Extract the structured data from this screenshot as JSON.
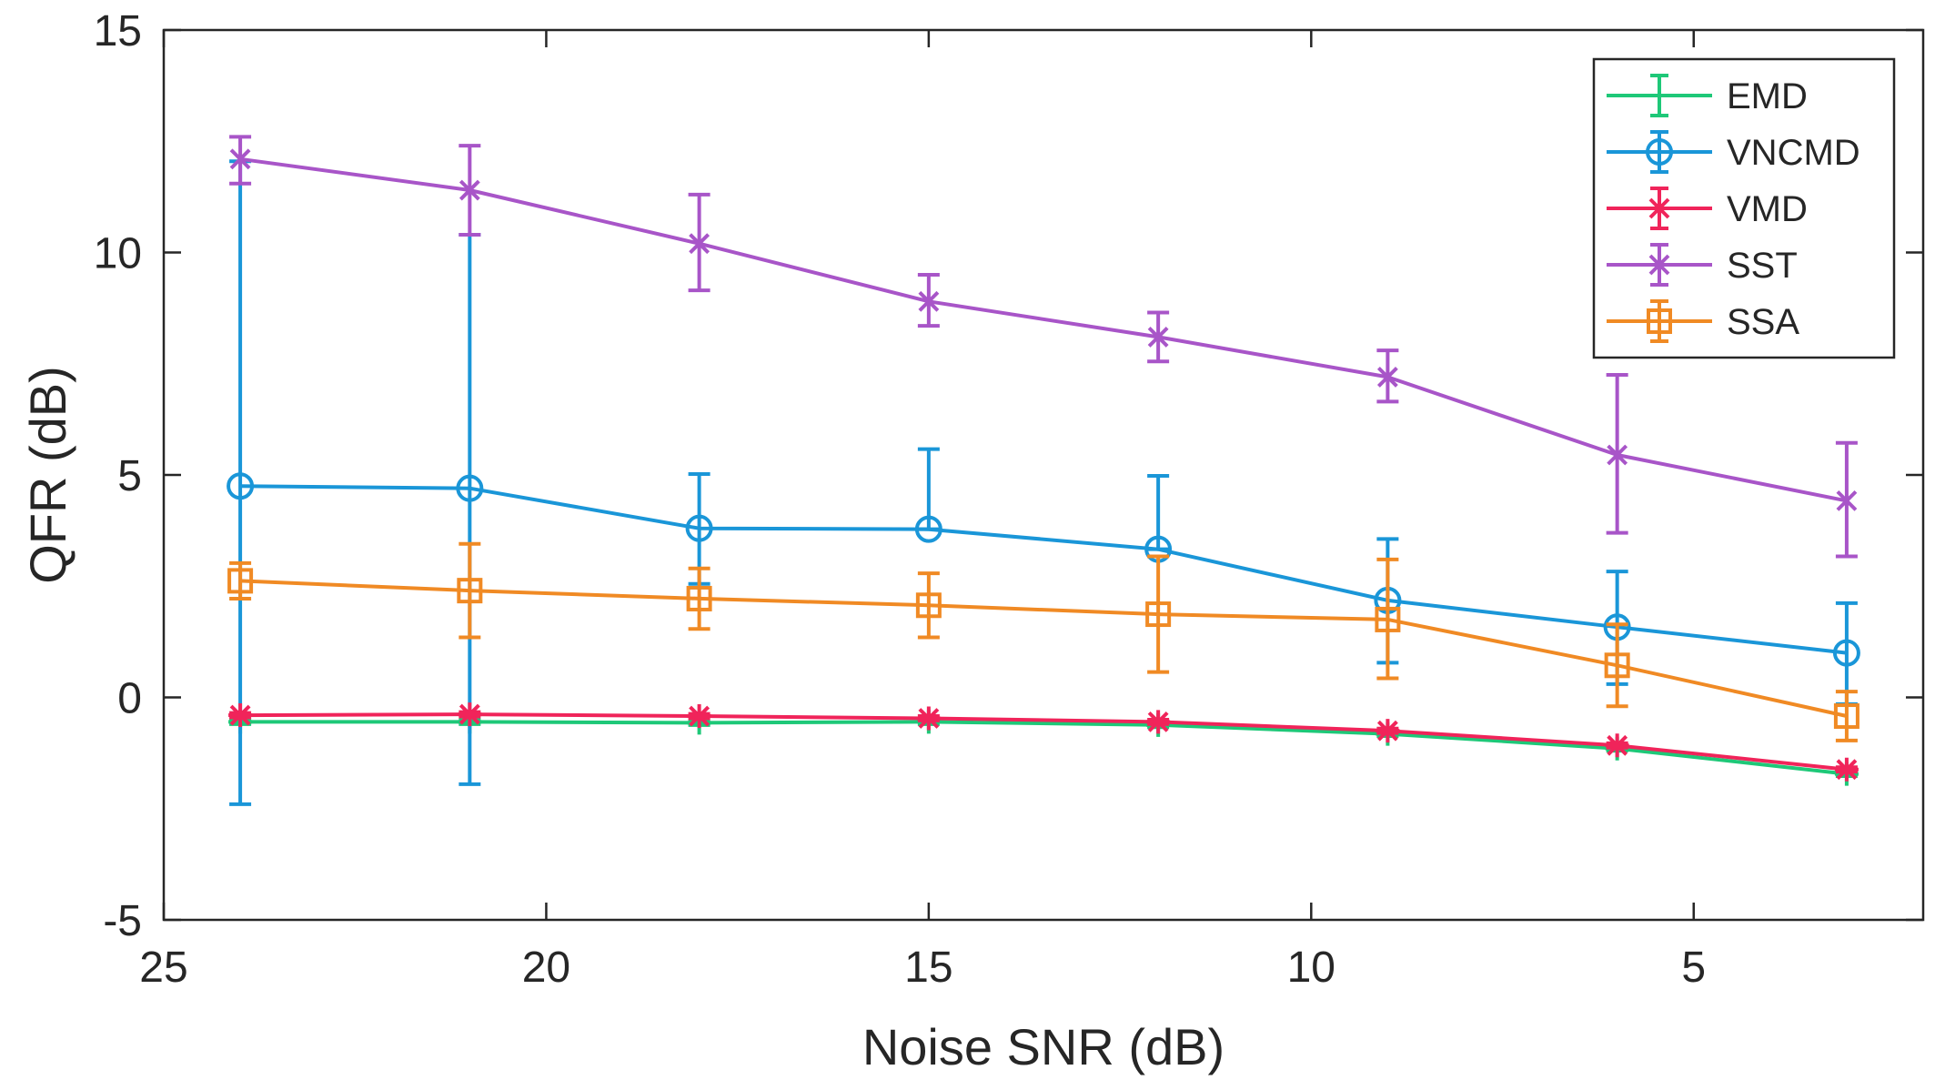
{
  "chart_data": {
    "type": "line",
    "title": "",
    "xlabel": "Noise SNR (dB)",
    "ylabel": "QFR (dB)",
    "xlim": [
      25,
      2
    ],
    "ylim": [
      -5,
      15
    ],
    "x_reversed": true,
    "grid": false,
    "legend_position": "top-right",
    "xticks": [
      25,
      20,
      15,
      10,
      5
    ],
    "xtick_labels": [
      "25",
      "20",
      "15",
      "10",
      "5"
    ],
    "yticks": [
      15,
      10,
      5,
      0,
      -5
    ],
    "ytick_labels": [
      "15",
      "10",
      "5",
      "0",
      "-5"
    ],
    "x": [
      24,
      21,
      18,
      15,
      12,
      9,
      6,
      3
    ],
    "series": [
      {
        "name": "EMD",
        "color": "#1ec878",
        "marker": "plus",
        "values": [
          -0.55,
          -0.55,
          -0.57,
          -0.55,
          -0.62,
          -0.82,
          -1.15,
          -1.72
        ],
        "err_low": [
          0.05,
          0.05,
          0.05,
          0.05,
          0.05,
          0.05,
          0.05,
          0.05
        ],
        "err_high": [
          0.05,
          0.05,
          0.05,
          0.05,
          0.05,
          0.05,
          0.05,
          0.05
        ]
      },
      {
        "name": "VNCMD",
        "color": "#1a96d8",
        "marker": "circle",
        "values": [
          4.75,
          4.7,
          3.8,
          3.78,
          3.33,
          2.18,
          1.58,
          1.0
        ],
        "err_low": [
          7.15,
          6.65,
          1.25,
          0.0,
          0.0,
          1.4,
          1.28,
          1.15
        ],
        "err_high": [
          7.3,
          5.7,
          1.22,
          1.8,
          1.65,
          1.38,
          1.25,
          1.12
        ]
      },
      {
        "name": "VMD",
        "color": "#f0245a",
        "marker": "star",
        "values": [
          -0.4,
          -0.38,
          -0.42,
          -0.47,
          -0.55,
          -0.75,
          -1.08,
          -1.62
        ],
        "err_low": [
          0.05,
          0.05,
          0.05,
          0.05,
          0.05,
          0.05,
          0.05,
          0.05
        ],
        "err_high": [
          0.05,
          0.05,
          0.05,
          0.05,
          0.05,
          0.05,
          0.05,
          0.05
        ]
      },
      {
        "name": "SST",
        "color": "#a855c8",
        "marker": "cross",
        "values": [
          12.1,
          11.4,
          10.2,
          8.9,
          8.1,
          7.2,
          5.45,
          4.42
        ],
        "err_low": [
          0.55,
          1.0,
          1.05,
          0.55,
          0.55,
          0.55,
          1.75,
          1.25
        ],
        "err_high": [
          0.5,
          1.0,
          1.1,
          0.6,
          0.55,
          0.6,
          1.8,
          1.3
        ]
      },
      {
        "name": "SSA",
        "color": "#f08a24",
        "marker": "square",
        "values": [
          2.62,
          2.4,
          2.22,
          2.07,
          1.87,
          1.75,
          0.72,
          -0.42
        ],
        "err_low": [
          0.4,
          1.05,
          0.68,
          0.72,
          1.3,
          1.32,
          0.92,
          0.55
        ],
        "err_high": [
          0.4,
          1.05,
          0.68,
          0.72,
          1.3,
          1.35,
          0.92,
          0.55
        ]
      }
    ]
  }
}
